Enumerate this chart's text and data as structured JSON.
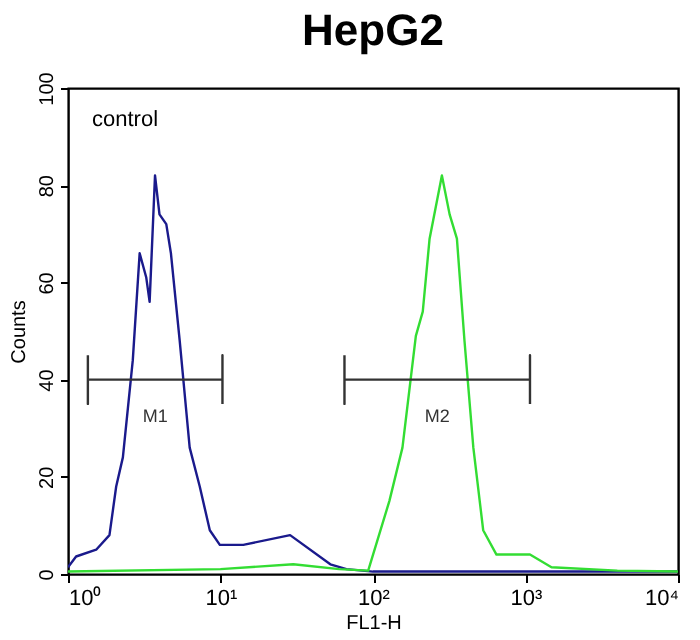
{
  "chart_data": {
    "type": "line",
    "title": "HepG2",
    "xlabel": "FL1-H",
    "ylabel": "Counts",
    "log": "x",
    "xlim": [
      1,
      10000
    ],
    "xticks": [
      {
        "value": 1,
        "label": "10⁰"
      },
      {
        "value": 10,
        "label": "10¹"
      },
      {
        "value": 100,
        "label": "10²"
      },
      {
        "value": 1000,
        "label": "10³"
      },
      {
        "value": 10000,
        "label": "10⁴"
      }
    ],
    "ylim": [
      0,
      100
    ],
    "yticks": [
      0,
      20,
      40,
      60,
      80,
      100
    ],
    "annotations": [
      "control"
    ],
    "series": [
      {
        "color": "#1a1a8c",
        "x": [
          1,
          1.13,
          1.53,
          1.87,
          2.07,
          2.29,
          2.66,
          2.95,
          3.26,
          3.43,
          3.72,
          3.98,
          4.41,
          4.73,
          5.4,
          6.28,
          7.31,
          8.51,
          9.9,
          14.1,
          28.6,
          52.5,
          67,
          100,
          1000,
          10000
        ],
        "values": [
          1.4,
          3.6,
          5,
          8,
          18,
          24,
          44,
          66,
          61,
          56,
          82,
          74,
          72,
          66,
          48,
          26,
          18,
          9,
          6,
          6,
          8,
          2,
          1,
          0.5,
          0.5,
          0.5
        ]
      },
      {
        "color": "#33dd33",
        "x": [
          1,
          10,
          30,
          60,
          93,
          128,
          156,
          191,
          212,
          235,
          283,
          318,
          355,
          398,
          455,
          528,
          645,
          1070,
          1480,
          4000,
          10000
        ],
        "values": [
          0.5,
          1,
          2,
          1,
          0.7,
          15,
          26,
          49,
          54,
          69,
          82,
          74,
          69,
          48,
          26,
          9,
          4,
          4,
          1.4,
          0.7,
          0.5
        ]
      },
      {
        "name": "M1",
        "color": "#333333",
        "x": [
          1.35,
          1.35,
          1.35,
          10.3,
          10.3,
          10.3
        ],
        "values": [
          45,
          35,
          40,
          40,
          45,
          35
        ]
      },
      {
        "name": "M2",
        "color": "#333333",
        "x": [
          65,
          65,
          65,
          1070,
          1070,
          1070
        ],
        "values": [
          45,
          35,
          40,
          40,
          45,
          35
        ]
      }
    ]
  }
}
